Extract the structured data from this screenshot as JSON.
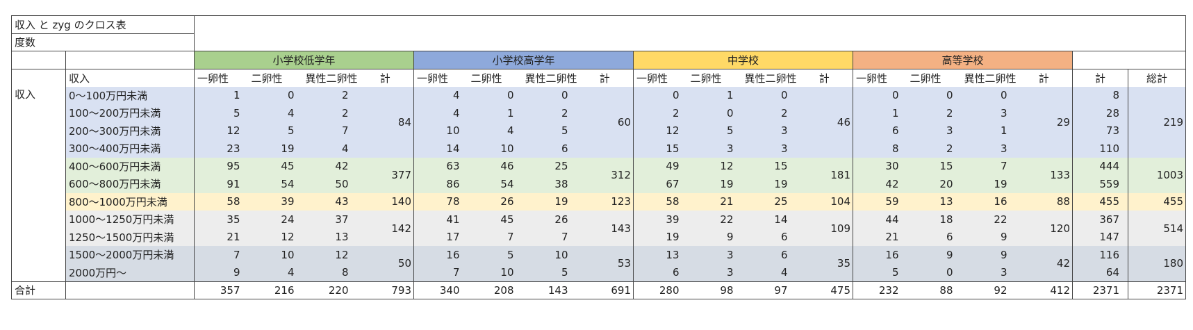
{
  "title": "収入 と zyg のクロス表",
  "subtitle": "度数",
  "groups": [
    "小学校低学年",
    "小学校高学年",
    "中学校",
    "高等学校"
  ],
  "row_var_label": "収入",
  "col_var_label": "収入",
  "sub_headers": [
    "一卵性",
    "二卵性",
    "異性二卵性",
    "計"
  ],
  "right_headers": [
    "計",
    "総計"
  ],
  "total_label": "合計",
  "rows": [
    {
      "label": "0～100万円未満",
      "vals": [
        [
          1,
          0,
          2
        ],
        [
          4,
          0,
          0
        ],
        [
          0,
          1,
          0
        ],
        [
          0,
          0,
          0
        ]
      ],
      "rt": 8
    },
    {
      "label": "100～200万円未満",
      "vals": [
        [
          5,
          4,
          2
        ],
        [
          4,
          1,
          2
        ],
        [
          2,
          0,
          2
        ],
        [
          1,
          2,
          3
        ]
      ],
      "rt": 28
    },
    {
      "label": "200～300万円未満",
      "vals": [
        [
          12,
          5,
          7
        ],
        [
          10,
          4,
          5
        ],
        [
          12,
          5,
          3
        ],
        [
          6,
          3,
          1
        ]
      ],
      "rt": 73
    },
    {
      "label": "300～400万円未満",
      "vals": [
        [
          23,
          19,
          4
        ],
        [
          14,
          10,
          6
        ],
        [
          15,
          3,
          3
        ],
        [
          8,
          2,
          3
        ]
      ],
      "rt": 110
    },
    {
      "label": "400～600万円未満",
      "vals": [
        [
          95,
          45,
          42
        ],
        [
          63,
          46,
          25
        ],
        [
          49,
          12,
          15
        ],
        [
          30,
          15,
          7
        ]
      ],
      "rt": 444
    },
    {
      "label": "600～800万円未満",
      "vals": [
        [
          91,
          54,
          50
        ],
        [
          86,
          54,
          38
        ],
        [
          67,
          19,
          19
        ],
        [
          42,
          20,
          19
        ]
      ],
      "rt": 559
    },
    {
      "label": "800～1000万円未満",
      "vals": [
        [
          58,
          39,
          43
        ],
        [
          78,
          26,
          19
        ],
        [
          58,
          21,
          25
        ],
        [
          59,
          13,
          16
        ]
      ],
      "rt": 455
    },
    {
      "label": "1000～1250万円未満",
      "vals": [
        [
          35,
          24,
          37
        ],
        [
          41,
          45,
          26
        ],
        [
          39,
          22,
          14
        ],
        [
          44,
          18,
          22
        ]
      ],
      "rt": 367
    },
    {
      "label": "1250～1500万円未満",
      "vals": [
        [
          21,
          12,
          13
        ],
        [
          17,
          7,
          7
        ],
        [
          19,
          9,
          6
        ],
        [
          21,
          6,
          9
        ]
      ],
      "rt": 147
    },
    {
      "label": "1500～2000万円未満",
      "vals": [
        [
          7,
          10,
          12
        ],
        [
          16,
          5,
          10
        ],
        [
          13,
          3,
          6
        ],
        [
          16,
          9,
          9
        ]
      ],
      "rt": 116
    },
    {
      "label": "2000万円～",
      "vals": [
        [
          9,
          4,
          8
        ],
        [
          7,
          10,
          5
        ],
        [
          6,
          3,
          4
        ],
        [
          5,
          0,
          3
        ]
      ],
      "rt": 64
    }
  ],
  "bands": [
    {
      "rows": [
        0,
        1,
        2,
        3
      ],
      "subtotals": [
        84,
        60,
        46,
        29
      ],
      "grand": 219,
      "color": "#d9e1f2"
    },
    {
      "rows": [
        4,
        5
      ],
      "subtotals": [
        377,
        312,
        181,
        133
      ],
      "grand": 1003,
      "color": "#e2efda"
    },
    {
      "rows": [
        6
      ],
      "subtotals": [
        140,
        123,
        104,
        88
      ],
      "grand": 455,
      "color": "#fff2cc"
    },
    {
      "rows": [
        7,
        8
      ],
      "subtotals": [
        142,
        143,
        109,
        120
      ],
      "grand": 514,
      "color": "#ededed"
    },
    {
      "rows": [
        9,
        10
      ],
      "subtotals": [
        50,
        53,
        35,
        42
      ],
      "grand": 180,
      "color": "#d6dce4"
    }
  ],
  "totals": {
    "vals": [
      [
        357,
        216,
        220
      ],
      [
        340,
        208,
        143
      ],
      [
        280,
        98,
        97
      ],
      [
        232,
        88,
        92
      ]
    ],
    "subtotals": [
      793,
      691,
      475,
      412
    ],
    "rt": 2371,
    "grand": 2371
  },
  "colors": {
    "g1": "#a9d08e",
    "g2": "#8ea9db",
    "g3": "#ffd966",
    "g4": "#f4b183"
  }
}
